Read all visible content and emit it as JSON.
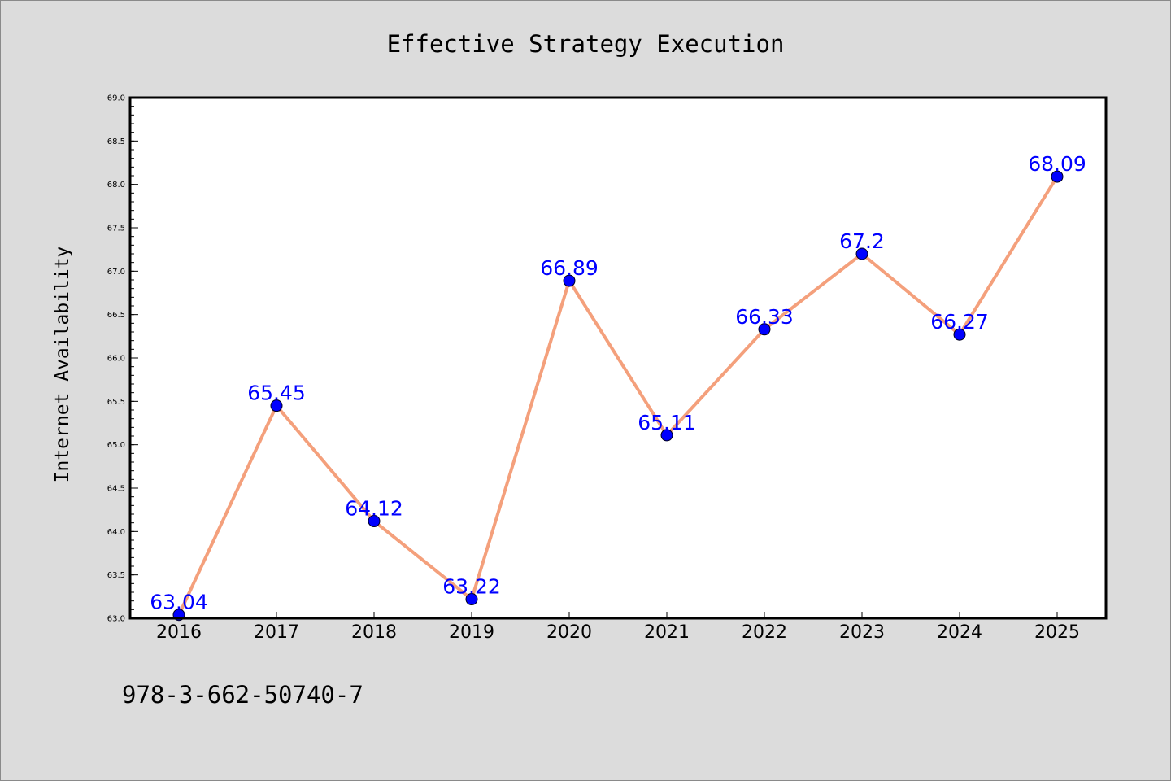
{
  "colors": {
    "background": "#dcdcdc",
    "plot_background": "#ffffff",
    "line": "#f4a07c",
    "marker": "#0000ff",
    "data_label": "#0000ff"
  },
  "footnote": "978-3-662-50740-7",
  "chart_data": {
    "type": "line",
    "title": "Effective Strategy Execution",
    "xlabel": "",
    "ylabel": "Internet Availability",
    "categories": [
      "2016",
      "2017",
      "2018",
      "2019",
      "2020",
      "2021",
      "2022",
      "2023",
      "2024",
      "2025"
    ],
    "series": [
      {
        "values": [
          63.04,
          65.45,
          64.12,
          63.22,
          66.89,
          65.11,
          66.33,
          67.2,
          66.27,
          68.09
        ],
        "data_labels": [
          "63.04",
          "65.45",
          "64.12",
          "63.22",
          "66.89",
          "65.11",
          "66.33",
          "67.2",
          "66.27",
          "68.09"
        ],
        "color": "#f4a07c",
        "marker_color": "#0000ff"
      }
    ],
    "ylim": [
      63.0,
      69.0
    ],
    "yticks": [
      63.0,
      63.5,
      64.0,
      64.5,
      65.0,
      65.5,
      66.0,
      66.5,
      67.0,
      67.5,
      68.0,
      68.5,
      69.0
    ],
    "ytick_labels": [
      "63.0",
      "63.5",
      "64.0",
      "64.5",
      "65.0",
      "65.5",
      "66.0",
      "66.5",
      "67.0",
      "67.5",
      "68.0",
      "68.5",
      "69.0"
    ],
    "grid": false,
    "legend": "none"
  }
}
